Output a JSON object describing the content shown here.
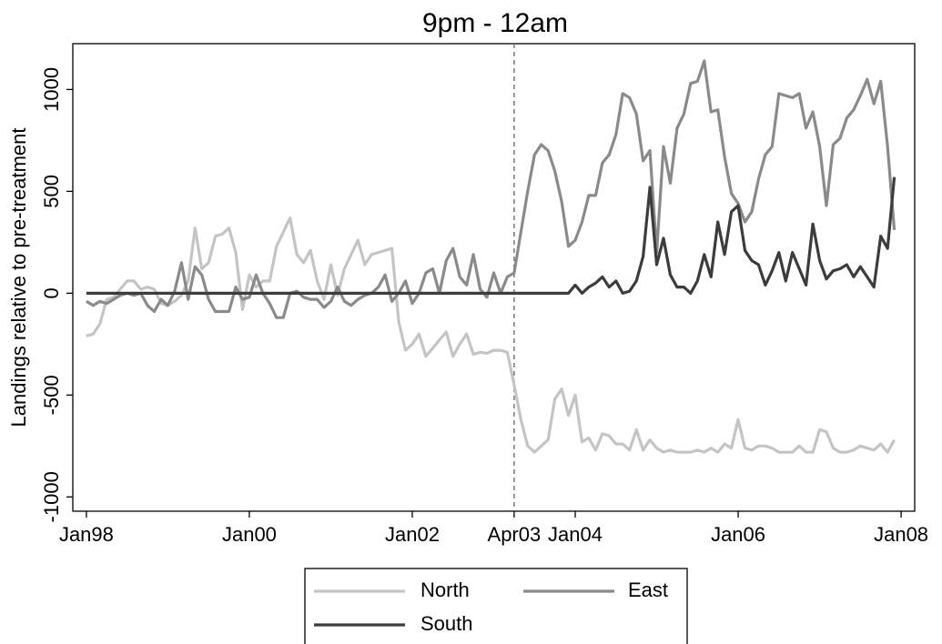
{
  "chart_data": {
    "type": "line",
    "title": "9pm - 12am",
    "y_label": "Landings relative to pre-treatment",
    "x": [
      "1998-01",
      "1998-02",
      "1998-03",
      "1998-04",
      "1998-05",
      "1998-06",
      "1998-07",
      "1998-08",
      "1998-09",
      "1998-10",
      "1998-11",
      "1998-12",
      "1999-01",
      "1999-02",
      "1999-03",
      "1999-04",
      "1999-05",
      "1999-06",
      "1999-07",
      "1999-08",
      "1999-09",
      "1999-10",
      "1999-11",
      "1999-12",
      "2000-01",
      "2000-02",
      "2000-03",
      "2000-04",
      "2000-05",
      "2000-06",
      "2000-07",
      "2000-08",
      "2000-09",
      "2000-10",
      "2000-11",
      "2000-12",
      "2001-01",
      "2001-02",
      "2001-03",
      "2001-04",
      "2001-05",
      "2001-06",
      "2001-07",
      "2001-08",
      "2001-09",
      "2001-10",
      "2001-11",
      "2001-12",
      "2002-01",
      "2002-02",
      "2002-03",
      "2002-04",
      "2002-05",
      "2002-06",
      "2002-07",
      "2002-08",
      "2002-09",
      "2002-10",
      "2002-11",
      "2002-12",
      "2003-01",
      "2003-02",
      "2003-03",
      "2003-04",
      "2003-05",
      "2003-06",
      "2003-07",
      "2003-08",
      "2003-09",
      "2003-10",
      "2003-11",
      "2003-12",
      "2004-01",
      "2004-02",
      "2004-03",
      "2004-04",
      "2004-05",
      "2004-06",
      "2004-07",
      "2004-08",
      "2004-09",
      "2004-10",
      "2004-11",
      "2004-12",
      "2005-01",
      "2005-02",
      "2005-03",
      "2005-04",
      "2005-05",
      "2005-06",
      "2005-07",
      "2005-08",
      "2005-09",
      "2005-10",
      "2005-11",
      "2005-12",
      "2006-01",
      "2006-02",
      "2006-03",
      "2006-04",
      "2006-05",
      "2006-06",
      "2006-07",
      "2006-08",
      "2006-09",
      "2006-10",
      "2006-11",
      "2006-12",
      "2007-01",
      "2007-02",
      "2007-03",
      "2007-04",
      "2007-05",
      "2007-06",
      "2007-07",
      "2007-08",
      "2007-09",
      "2007-10",
      "2007-11",
      "2007-12"
    ],
    "series": [
      {
        "name": "North",
        "color": "#c4c4c4",
        "values": [
          -210,
          -200,
          -150,
          -30,
          -20,
          20,
          60,
          60,
          20,
          30,
          20,
          -50,
          -60,
          -40,
          -10,
          60,
          320,
          120,
          150,
          280,
          290,
          320,
          200,
          -80,
          90,
          30,
          60,
          60,
          230,
          300,
          370,
          190,
          150,
          210,
          60,
          -30,
          140,
          -10,
          120,
          190,
          260,
          140,
          190,
          200,
          210,
          220,
          -140,
          -280,
          -250,
          -200,
          -310,
          -270,
          -230,
          -190,
          -310,
          -250,
          -200,
          -300,
          -290,
          -295,
          -280,
          -280,
          -290,
          -450,
          -620,
          -750,
          -780,
          -750,
          -720,
          -520,
          -470,
          -600,
          -500,
          -730,
          -710,
          -770,
          -690,
          -700,
          -740,
          -740,
          -770,
          -670,
          -770,
          -720,
          -760,
          -780,
          -770,
          -780,
          -780,
          -780,
          -770,
          -780,
          -760,
          -780,
          -740,
          -760,
          -620,
          -760,
          -770,
          -750,
          -750,
          -760,
          -780,
          -780,
          -780,
          -750,
          -780,
          -780,
          -670,
          -680,
          -760,
          -780,
          -780,
          -770,
          -750,
          -760,
          -770,
          -740,
          -780,
          -720
        ]
      },
      {
        "name": "East",
        "color": "#8a8a8a",
        "values": [
          -40,
          -60,
          -40,
          -50,
          -30,
          -10,
          0,
          -10,
          0,
          -60,
          -90,
          -30,
          -60,
          10,
          150,
          -30,
          130,
          90,
          -30,
          -90,
          -90,
          -90,
          30,
          -30,
          -20,
          90,
          0,
          -50,
          -120,
          -120,
          0,
          10,
          -20,
          -30,
          -30,
          -70,
          -40,
          30,
          -40,
          -60,
          -30,
          -10,
          0,
          30,
          90,
          -40,
          0,
          60,
          -50,
          0,
          100,
          120,
          0,
          160,
          220,
          80,
          40,
          190,
          20,
          -20,
          100,
          0,
          80,
          100,
          300,
          500,
          680,
          730,
          700,
          600,
          450,
          230,
          260,
          350,
          480,
          480,
          640,
          680,
          780,
          980,
          960,
          880,
          650,
          700,
          200,
          720,
          540,
          810,
          880,
          1030,
          1040,
          1140,
          890,
          900,
          670,
          490,
          440,
          350,
          400,
          560,
          680,
          720,
          980,
          970,
          960,
          980,
          810,
          890,
          720,
          430,
          730,
          760,
          860,
          900,
          970,
          1050,
          930,
          1040,
          720,
          310
        ]
      },
      {
        "name": "South",
        "color": "#3c3c3c",
        "values": [
          0,
          0,
          0,
          0,
          0,
          0,
          0,
          0,
          0,
          0,
          0,
          0,
          0,
          0,
          0,
          0,
          0,
          0,
          0,
          0,
          0,
          0,
          0,
          0,
          0,
          0,
          0,
          0,
          0,
          0,
          0,
          0,
          0,
          0,
          0,
          0,
          0,
          0,
          0,
          0,
          0,
          0,
          0,
          0,
          0,
          0,
          0,
          0,
          0,
          0,
          0,
          0,
          0,
          0,
          0,
          0,
          0,
          0,
          0,
          0,
          0,
          0,
          0,
          0,
          0,
          0,
          0,
          0,
          0,
          0,
          0,
          0,
          40,
          0,
          30,
          50,
          80,
          30,
          60,
          0,
          10,
          60,
          180,
          520,
          140,
          270,
          90,
          30,
          30,
          0,
          60,
          190,
          80,
          350,
          190,
          400,
          430,
          210,
          160,
          140,
          40,
          110,
          200,
          60,
          200,
          120,
          40,
          340,
          160,
          70,
          110,
          120,
          140,
          80,
          130,
          80,
          30,
          280,
          220,
          570
        ]
      }
    ],
    "xlim": [
      "1997-11",
      "2008-03"
    ],
    "xticks": [
      {
        "value": "1998-01",
        "label": "Jan98"
      },
      {
        "value": "2000-01",
        "label": "Jan00"
      },
      {
        "value": "2002-01",
        "label": "Jan02"
      },
      {
        "value": "2003-04",
        "label": "Apr03"
      },
      {
        "value": "2004-01",
        "label": "Jan04"
      },
      {
        "value": "2006-01",
        "label": "Jan06"
      },
      {
        "value": "2008-01",
        "label": "Jan08"
      }
    ],
    "ylim": [
      -1070,
      1225
    ],
    "yticks": [
      -1000,
      -500,
      0,
      500,
      1000
    ],
    "vline": "2003-04",
    "legend": "bottom"
  }
}
